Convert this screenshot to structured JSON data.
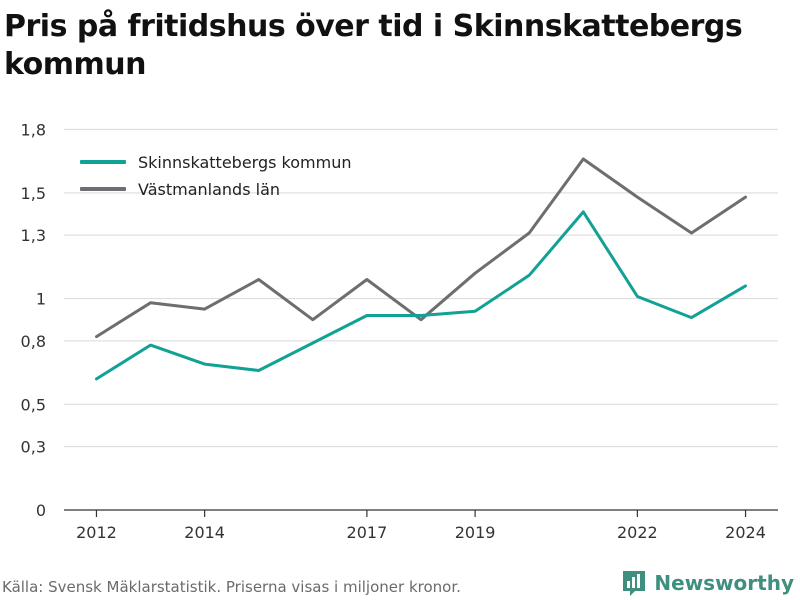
{
  "title": "Pris på fritidshus över tid i Skinnskattebergs kommun",
  "footer": {
    "source": "Källa: Svensk Mäklarstatistik. Priserna visas i miljoner kronor.",
    "brand": "Newsworthy"
  },
  "colors": {
    "series_teal": "#12a195",
    "series_gray": "#6d6d72",
    "grid": "#d9d9d9",
    "axis": "#333333",
    "brand": "#3f8f7f"
  },
  "chart_data": {
    "type": "line",
    "x": [
      2012,
      2013,
      2014,
      2015,
      2016,
      2017,
      2018,
      2019,
      2020,
      2021,
      2022,
      2023,
      2024
    ],
    "x_tick_values": [
      2012,
      2014,
      2017,
      2019,
      2022,
      2024
    ],
    "x_tick_labels": [
      "2012",
      "2014",
      "2017",
      "2019",
      "2022",
      "2024"
    ],
    "y_tick_values": [
      0,
      0.3,
      0.5,
      0.8,
      1,
      1.3,
      1.5,
      1.8
    ],
    "y_tick_labels": [
      "0",
      "0,3",
      "0,5",
      "0,8",
      "1",
      "1,3",
      "1,5",
      "1,8"
    ],
    "ylim": [
      0,
      1.75
    ],
    "grid": true,
    "legend_position": "top-left",
    "series": [
      {
        "name": "Skinnskattebergs kommun",
        "color": "#12a195",
        "values": [
          0.62,
          0.78,
          0.69,
          0.66,
          0.79,
          0.92,
          0.92,
          0.94,
          1.11,
          1.41,
          1.01,
          0.91,
          1.06
        ]
      },
      {
        "name": "Västmanlands län",
        "color": "#6d6d72",
        "values": [
          0.82,
          0.98,
          0.95,
          1.09,
          0.9,
          1.09,
          0.9,
          1.12,
          1.31,
          1.66,
          1.48,
          1.31,
          1.48
        ]
      }
    ]
  }
}
